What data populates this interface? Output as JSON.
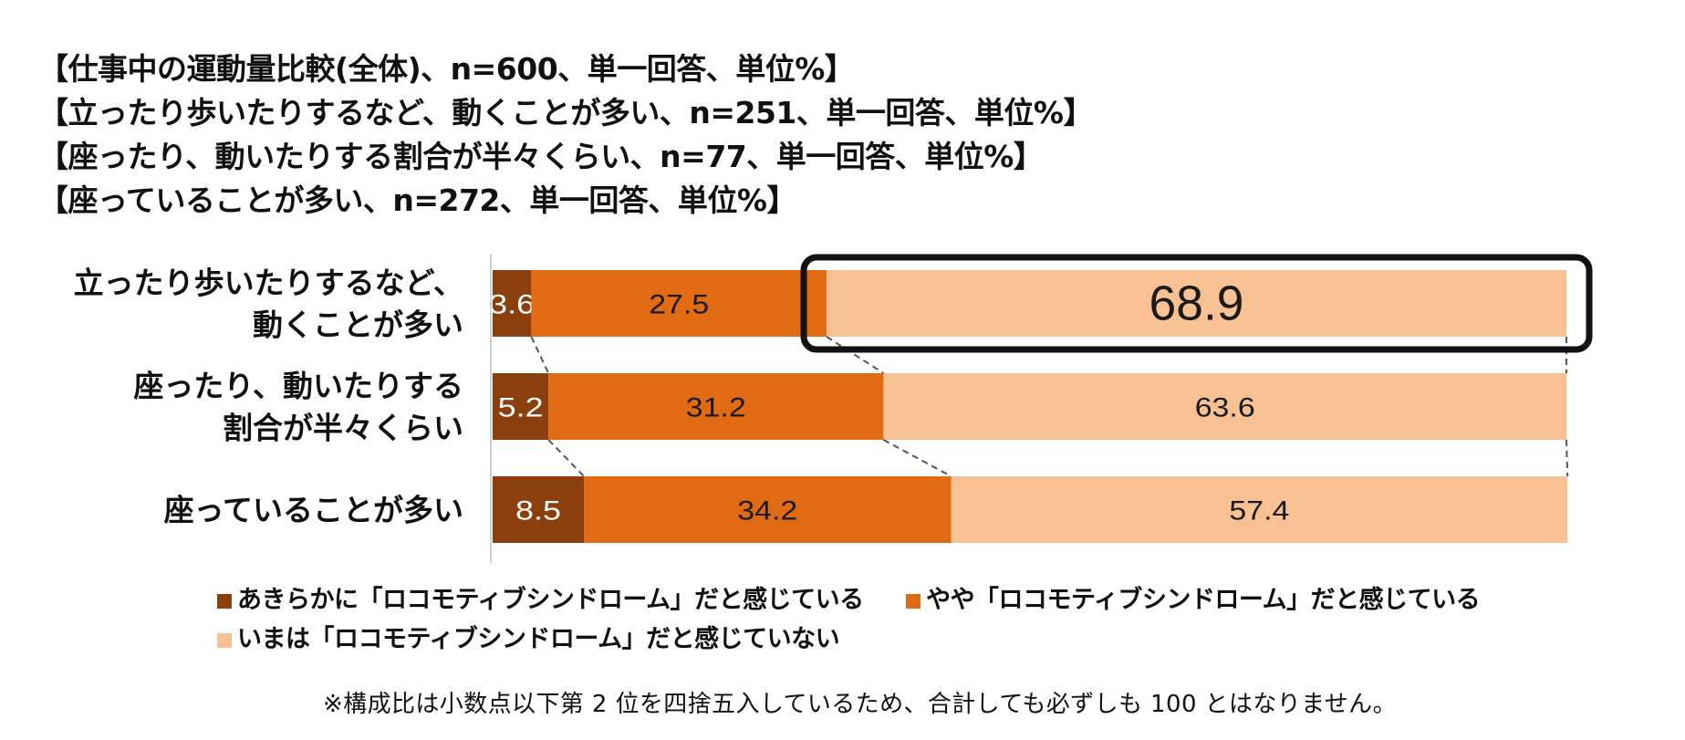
{
  "header": {
    "lines": [
      "【仕事中の運動量比較(全体)、n=600、単一回答、単位%】",
      "【立ったり歩いたりするなど、動くことが多い、n=251、単一回答、単位%】",
      "【座ったり、動いたりする割合が半々くらい、n=77、単一回答、単位%】",
      "【座っていることが多い、n=272、単一回答、単位%】"
    ]
  },
  "chart_data": {
    "type": "bar",
    "orientation": "horizontal",
    "stacked": true,
    "xlim": [
      0,
      100
    ],
    "categories": [
      [
        "立ったり歩いたりするなど、",
        "動くことが多い"
      ],
      [
        "座ったり、動いたりする",
        "割合が半々くらい"
      ],
      [
        "座っていることが多い"
      ]
    ],
    "series": [
      {
        "name": "あきらかに「ロコモティブシンドローム」だと感じている",
        "color": "#8b3f0d",
        "values": [
          3.6,
          5.2,
          8.5
        ]
      },
      {
        "name": "やや「ロコモティブシンドローム」だと感じている",
        "color": "#e16b12",
        "values": [
          27.5,
          31.2,
          34.2
        ]
      },
      {
        "name": "いまは「ロコモティブシンドローム」だと感じていない",
        "color": "#f8c193",
        "values": [
          68.9,
          63.6,
          57.4
        ]
      }
    ],
    "data_labels": [
      [
        "3.6",
        "27.5",
        "68.9"
      ],
      [
        "5.2",
        "31.2",
        "63.6"
      ],
      [
        "8.5",
        "34.2",
        "57.4"
      ]
    ],
    "highlight": {
      "series_index": 2,
      "category_index": 0,
      "style": "rounded-outline"
    },
    "connector_lines": "dashed",
    "grid": false,
    "legend_position": "bottom"
  },
  "footnote": "※構成比は小数点以下第 2 位を四捨五入しているため、合計しても必ずしも 100 とはなりません。"
}
